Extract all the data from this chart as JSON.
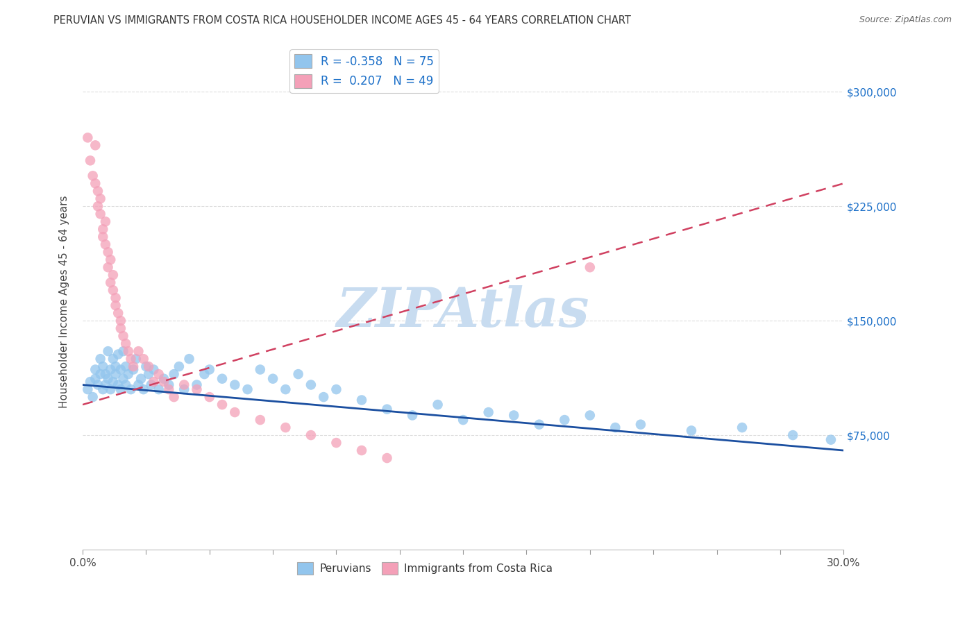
{
  "title": "PERUVIAN VS IMMIGRANTS FROM COSTA RICA HOUSEHOLDER INCOME AGES 45 - 64 YEARS CORRELATION CHART",
  "source": "Source: ZipAtlas.com",
  "ylabel": "Householder Income Ages 45 - 64 years",
  "xlim": [
    0.0,
    0.3
  ],
  "ylim": [
    0,
    325000
  ],
  "xticks": [
    0.0,
    0.025,
    0.05,
    0.075,
    0.1,
    0.125,
    0.15,
    0.175,
    0.2,
    0.225,
    0.25,
    0.275,
    0.3
  ],
  "xtick_labels_show": {
    "0.0": "0.0%",
    "0.30": "30.0%"
  },
  "ytick_vals_right": [
    75000,
    150000,
    225000,
    300000
  ],
  "ytick_labels_right": [
    "$75,000",
    "$150,000",
    "$225,000",
    "$300,000"
  ],
  "legend_r_blue": "-0.358",
  "legend_n_blue": "75",
  "legend_r_pink": "0.207",
  "legend_n_pink": "49",
  "blue_color": "#92C5ED",
  "pink_color": "#F4A0B8",
  "trend_blue_color": "#1B4FA0",
  "trend_pink_color": "#D04060",
  "watermark": "ZIPAtlas",
  "watermark_color": "#C8DCF0",
  "blue_scatter_x": [
    0.002,
    0.003,
    0.004,
    0.005,
    0.005,
    0.006,
    0.007,
    0.007,
    0.008,
    0.008,
    0.009,
    0.009,
    0.01,
    0.01,
    0.011,
    0.011,
    0.012,
    0.012,
    0.013,
    0.013,
    0.014,
    0.014,
    0.015,
    0.015,
    0.016,
    0.016,
    0.017,
    0.017,
    0.018,
    0.019,
    0.02,
    0.021,
    0.022,
    0.023,
    0.024,
    0.025,
    0.026,
    0.027,
    0.028,
    0.03,
    0.032,
    0.034,
    0.036,
    0.038,
    0.04,
    0.042,
    0.045,
    0.048,
    0.05,
    0.055,
    0.06,
    0.065,
    0.07,
    0.075,
    0.08,
    0.085,
    0.09,
    0.095,
    0.1,
    0.11,
    0.12,
    0.13,
    0.14,
    0.15,
    0.16,
    0.17,
    0.18,
    0.19,
    0.2,
    0.21,
    0.22,
    0.24,
    0.26,
    0.28,
    0.295
  ],
  "blue_scatter_y": [
    105000,
    110000,
    100000,
    112000,
    118000,
    108000,
    115000,
    125000,
    105000,
    120000,
    115000,
    108000,
    130000,
    112000,
    118000,
    105000,
    125000,
    110000,
    120000,
    115000,
    108000,
    128000,
    118000,
    105000,
    130000,
    112000,
    120000,
    108000,
    115000,
    105000,
    118000,
    125000,
    108000,
    112000,
    105000,
    120000,
    115000,
    108000,
    118000,
    105000,
    112000,
    108000,
    115000,
    120000,
    105000,
    125000,
    108000,
    115000,
    118000,
    112000,
    108000,
    105000,
    118000,
    112000,
    105000,
    115000,
    108000,
    100000,
    105000,
    98000,
    92000,
    88000,
    95000,
    85000,
    90000,
    88000,
    82000,
    85000,
    88000,
    80000,
    82000,
    78000,
    80000,
    75000,
    72000
  ],
  "pink_scatter_x": [
    0.002,
    0.003,
    0.004,
    0.005,
    0.005,
    0.006,
    0.006,
    0.007,
    0.007,
    0.008,
    0.008,
    0.009,
    0.009,
    0.01,
    0.01,
    0.011,
    0.011,
    0.012,
    0.012,
    0.013,
    0.013,
    0.014,
    0.015,
    0.015,
    0.016,
    0.017,
    0.018,
    0.019,
    0.02,
    0.022,
    0.024,
    0.026,
    0.028,
    0.03,
    0.032,
    0.034,
    0.036,
    0.04,
    0.045,
    0.05,
    0.055,
    0.06,
    0.07,
    0.08,
    0.09,
    0.1,
    0.11,
    0.12,
    0.2
  ],
  "pink_scatter_y": [
    270000,
    255000,
    245000,
    265000,
    240000,
    235000,
    225000,
    220000,
    230000,
    210000,
    205000,
    215000,
    200000,
    195000,
    185000,
    175000,
    190000,
    180000,
    170000,
    165000,
    160000,
    155000,
    150000,
    145000,
    140000,
    135000,
    130000,
    125000,
    120000,
    130000,
    125000,
    120000,
    110000,
    115000,
    110000,
    105000,
    100000,
    108000,
    105000,
    100000,
    95000,
    90000,
    85000,
    80000,
    75000,
    70000,
    65000,
    60000,
    185000
  ],
  "blue_trend_x0": 0.0,
  "blue_trend_y0": 108000,
  "blue_trend_x1": 0.3,
  "blue_trend_y1": 65000,
  "pink_trend_x0": 0.0,
  "pink_trend_y0": 95000,
  "pink_trend_x1": 0.3,
  "pink_trend_y1": 240000
}
